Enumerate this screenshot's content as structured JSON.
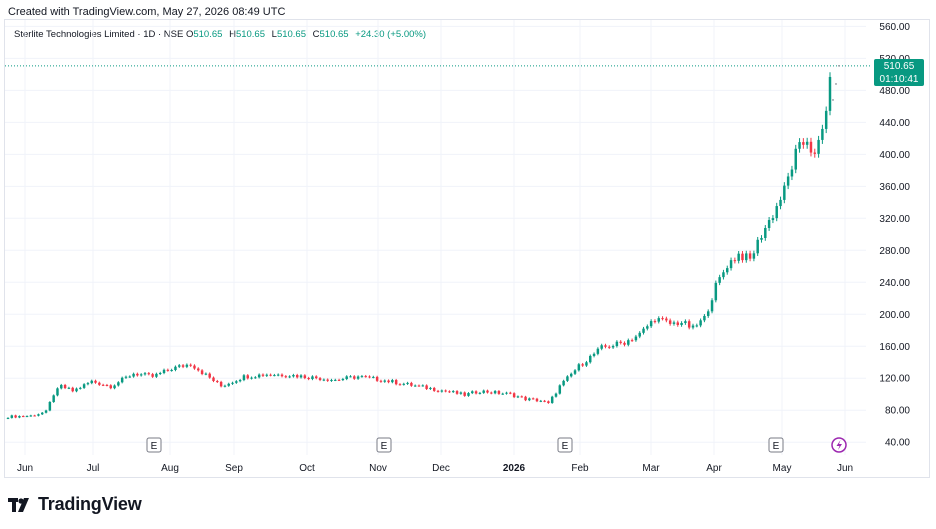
{
  "caption": "Created with TradingView.com, May 27, 2026 08:49 UTC",
  "legend": {
    "symbol": "Sterlite Technologies Limited · 1D · NSE",
    "o_label": "O",
    "o": "510.65",
    "h_label": "H",
    "h": "510.65",
    "l_label": "L",
    "l": "510.65",
    "c_label": "C",
    "c": "510.65",
    "change": "+24.30 (+5.00%)"
  },
  "price_tag": {
    "price": "510.65",
    "countdown": "01:10:41"
  },
  "brand": {
    "name": "TradingView"
  },
  "colors": {
    "up": "#089981",
    "down": "#f23645",
    "grid": "#f0f3fa",
    "axis_text": "#131722"
  },
  "chart_data": {
    "type": "candlestick",
    "y_axis": {
      "ticks": [
        "40.00",
        "80.00",
        "120.00",
        "160.00",
        "200.00",
        "240.00",
        "280.00",
        "320.00",
        "360.00",
        "400.00",
        "440.00",
        "480.00",
        "520.00",
        "560.00"
      ],
      "ylim": [
        24,
        568
      ]
    },
    "x_axis": {
      "labels": [
        "Jun",
        "Jul",
        "Aug",
        "Sep",
        "Oct",
        "Nov",
        "Dec",
        "2026",
        "Feb",
        "Mar",
        "Apr",
        "May",
        "Jun"
      ]
    },
    "last_price": 510.65,
    "earnings_markers": [
      "E",
      "E",
      "E",
      "E"
    ],
    "event_marker": "dividend",
    "anchors": [
      [
        0,
        72
      ],
      [
        6,
        73
      ],
      [
        10,
        78
      ],
      [
        12,
        100
      ],
      [
        14,
        110
      ],
      [
        17,
        104
      ],
      [
        22,
        116
      ],
      [
        27,
        110
      ],
      [
        33,
        126
      ],
      [
        38,
        122
      ],
      [
        43,
        132
      ],
      [
        48,
        138
      ],
      [
        52,
        124
      ],
      [
        56,
        110
      ],
      [
        62,
        122
      ],
      [
        68,
        125
      ],
      [
        74,
        124
      ],
      [
        80,
        121
      ],
      [
        86,
        118
      ],
      [
        92,
        122
      ],
      [
        98,
        118
      ],
      [
        104,
        113
      ],
      [
        110,
        108
      ],
      [
        116,
        103
      ],
      [
        120,
        99
      ],
      [
        124,
        104
      ],
      [
        128,
        102
      ],
      [
        132,
        100
      ],
      [
        136,
        94
      ],
      [
        140,
        92
      ],
      [
        142,
        88
      ],
      [
        145,
        110
      ],
      [
        150,
        135
      ],
      [
        156,
        158
      ],
      [
        162,
        165
      ],
      [
        166,
        175
      ],
      [
        170,
        195
      ],
      [
        174,
        188
      ],
      [
        177,
        190
      ],
      [
        180,
        182
      ],
      [
        183,
        195
      ],
      [
        186,
        235
      ],
      [
        189,
        262
      ],
      [
        192,
        275
      ],
      [
        195,
        268
      ],
      [
        198,
        300
      ],
      [
        201,
        325
      ],
      [
        204,
        355
      ],
      [
        207,
        400
      ],
      [
        210,
        420
      ],
      [
        212,
        395
      ],
      [
        214,
        430
      ],
      [
        215,
        460
      ],
      [
        216,
        486
      ]
    ]
  }
}
